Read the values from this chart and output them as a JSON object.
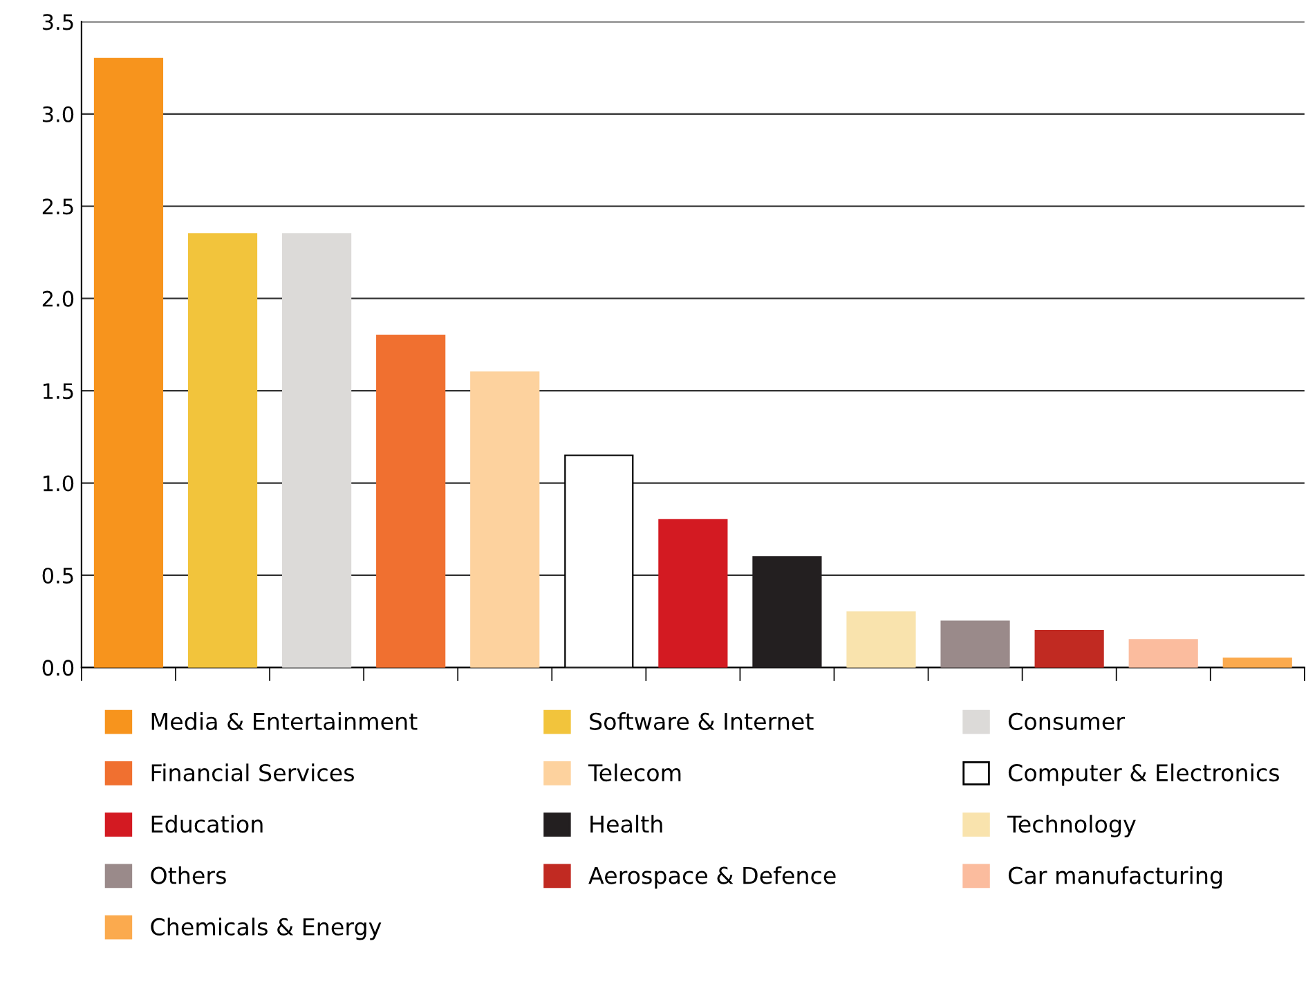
{
  "chart_data": {
    "type": "bar",
    "categories": [
      null,
      null,
      null,
      null,
      null,
      null,
      null,
      null,
      null,
      null,
      null,
      null,
      null
    ],
    "series": [
      {
        "name": "Media & Entertainment",
        "color": "#f7941d",
        "values": [
          3.3,
          null,
          null,
          null,
          null,
          null,
          null,
          null,
          null,
          null,
          null,
          null,
          null
        ]
      },
      {
        "name": "Software & Internet",
        "color": "#f2c43c",
        "values": [
          null,
          2.35,
          null,
          null,
          null,
          null,
          null,
          null,
          null,
          null,
          null,
          null,
          null
        ]
      },
      {
        "name": "Consumer",
        "color": "#dcdad8",
        "values": [
          null,
          null,
          2.35,
          null,
          null,
          null,
          null,
          null,
          null,
          null,
          null,
          null,
          null
        ]
      },
      {
        "name": "Financial Services",
        "color": "#f07030",
        "values": [
          null,
          null,
          null,
          1.8,
          null,
          null,
          null,
          null,
          null,
          null,
          null,
          null,
          null
        ]
      },
      {
        "name": "Telecom",
        "color": "#fdd29e",
        "values": [
          null,
          null,
          null,
          null,
          1.6,
          null,
          null,
          null,
          null,
          null,
          null,
          null,
          null
        ]
      },
      {
        "name": "Computer & Electronics",
        "color": "#ffffff",
        "values": [
          null,
          null,
          null,
          null,
          null,
          1.15,
          null,
          null,
          null,
          null,
          null,
          null,
          null
        ]
      },
      {
        "name": "Education",
        "color": "#d31a22",
        "values": [
          null,
          null,
          null,
          null,
          null,
          null,
          0.8,
          null,
          null,
          null,
          null,
          null,
          null
        ]
      },
      {
        "name": "Health",
        "color": "#231f20",
        "values": [
          null,
          null,
          null,
          null,
          null,
          null,
          null,
          0.6,
          null,
          null,
          null,
          null,
          null
        ]
      },
      {
        "name": "Technology",
        "color": "#f9e3ad",
        "values": [
          null,
          null,
          null,
          null,
          null,
          null,
          null,
          null,
          0.3,
          null,
          null,
          null,
          null
        ]
      },
      {
        "name": "Others",
        "color": "#9a8a8a",
        "values": [
          null,
          null,
          null,
          null,
          null,
          null,
          null,
          null,
          null,
          0.25,
          null,
          null,
          null
        ]
      },
      {
        "name": "Aerospace & Defence",
        "color": "#c12a22",
        "values": [
          null,
          null,
          null,
          null,
          null,
          null,
          null,
          null,
          null,
          null,
          0.2,
          null,
          null
        ]
      },
      {
        "name": "Car manufacturing",
        "color": "#fbbc9e",
        "values": [
          null,
          null,
          null,
          null,
          null,
          null,
          null,
          null,
          null,
          null,
          null,
          0.15,
          null
        ]
      },
      {
        "name": "Chemicals & Energy",
        "color": "#fbaa4e",
        "values": [
          null,
          null,
          null,
          null,
          null,
          null,
          null,
          null,
          null,
          null,
          null,
          null,
          0.05
        ]
      }
    ],
    "ylim": [
      0,
      3.5
    ],
    "yticks": [
      {
        "value": 0,
        "label": "0.0"
      },
      0.5,
      {
        "value": 1,
        "label": "1.0"
      },
      1.5,
      {
        "value": 2,
        "label": "2.0"
      },
      2.5,
      {
        "value": 3,
        "label": "3.0"
      },
      3.5
    ],
    "grid": "y",
    "legend": "bottom"
  }
}
